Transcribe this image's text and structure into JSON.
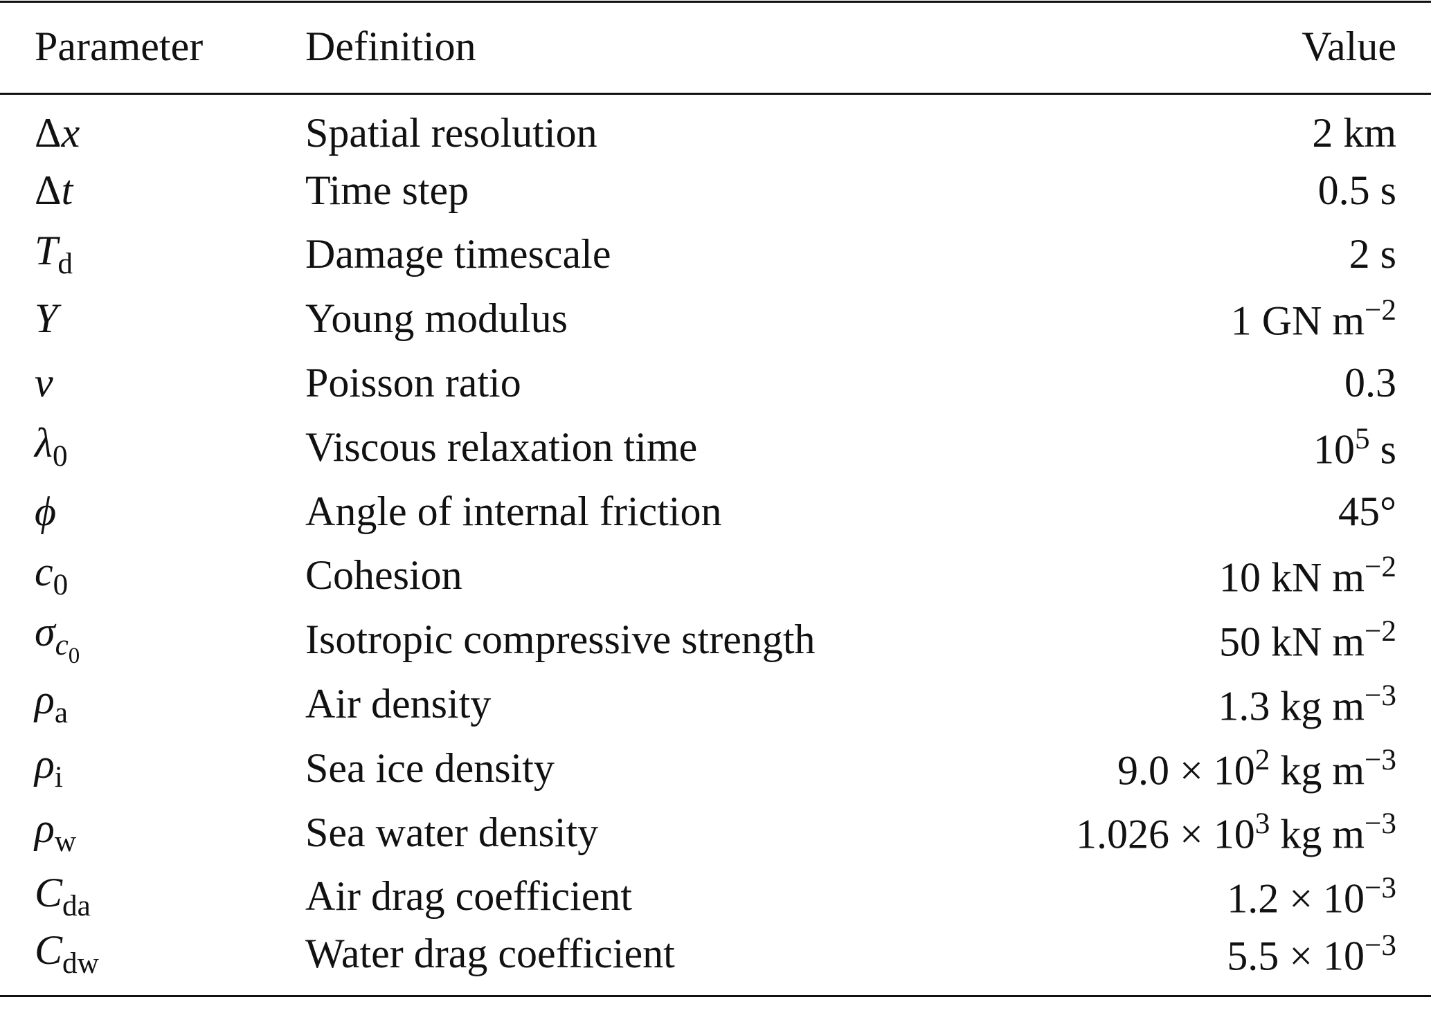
{
  "table": {
    "header": [
      "Parameter",
      "Definition",
      "Value"
    ],
    "rows": [
      [
        [
          {
            "text": "Δ"
          },
          {
            "text": "x",
            "style": "italic"
          }
        ],
        "Spatial resolution",
        [
          {
            "text": "2 km"
          }
        ]
      ],
      [
        [
          {
            "text": "Δ"
          },
          {
            "text": "t",
            "style": "italic"
          }
        ],
        "Time step",
        [
          {
            "text": "0.5 s"
          }
        ]
      ],
      [
        [
          {
            "text": "T",
            "style": "italic"
          },
          {
            "text": "d",
            "style": "sub"
          }
        ],
        "Damage timescale",
        [
          {
            "text": "2 s"
          }
        ]
      ],
      [
        [
          {
            "text": "Y",
            "style": "italic"
          }
        ],
        "Young modulus",
        [
          {
            "text": "1 GN m"
          },
          {
            "text": "−2",
            "style": "sup"
          }
        ]
      ],
      [
        [
          {
            "text": "ν",
            "style": "italic"
          }
        ],
        "Poisson ratio",
        [
          {
            "text": "0.3"
          }
        ]
      ],
      [
        [
          {
            "text": "λ",
            "style": "italic"
          },
          {
            "text": "0",
            "style": "sub"
          }
        ],
        "Viscous relaxation time",
        [
          {
            "text": "10"
          },
          {
            "text": "5",
            "style": "sup"
          },
          {
            "text": " s"
          }
        ]
      ],
      [
        [
          {
            "text": "ϕ",
            "style": "italic"
          }
        ],
        "Angle of internal friction",
        [
          {
            "text": "45°"
          }
        ]
      ],
      [
        [
          {
            "text": "c",
            "style": "italic"
          },
          {
            "text": "0",
            "style": "sub"
          }
        ],
        "Cohesion",
        [
          {
            "text": "10 kN m"
          },
          {
            "text": "−2",
            "style": "sup"
          }
        ]
      ],
      [
        [
          {
            "text": "σ",
            "style": "italic"
          },
          {
            "text": "c",
            "style": "sub-italic"
          },
          {
            "text": "0",
            "style": "sub-sub"
          }
        ],
        "Isotropic compressive strength",
        [
          {
            "text": "50 kN m"
          },
          {
            "text": "−2",
            "style": "sup"
          }
        ]
      ],
      [
        [
          {
            "text": "ρ",
            "style": "italic"
          },
          {
            "text": "a",
            "style": "sub"
          }
        ],
        "Air density",
        [
          {
            "text": "1.3 kg m"
          },
          {
            "text": "−3",
            "style": "sup"
          }
        ]
      ],
      [
        [
          {
            "text": "ρ",
            "style": "italic"
          },
          {
            "text": "i",
            "style": "sub"
          }
        ],
        "Sea ice density",
        [
          {
            "text": "9.0 × 10"
          },
          {
            "text": "2",
            "style": "sup"
          },
          {
            "text": " kg m"
          },
          {
            "text": "−3",
            "style": "sup"
          }
        ]
      ],
      [
        [
          {
            "text": "ρ",
            "style": "italic"
          },
          {
            "text": "w",
            "style": "sub"
          }
        ],
        "Sea water density",
        [
          {
            "text": "1.026 × 10"
          },
          {
            "text": "3",
            "style": "sup"
          },
          {
            "text": " kg m"
          },
          {
            "text": "−3",
            "style": "sup"
          }
        ]
      ],
      [
        [
          {
            "text": "C",
            "style": "italic"
          },
          {
            "text": "da",
            "style": "sub"
          }
        ],
        "Air drag coefficient",
        [
          {
            "text": "1.2 × 10"
          },
          {
            "text": "−3",
            "style": "sup"
          }
        ]
      ],
      [
        [
          {
            "text": "C",
            "style": "italic"
          },
          {
            "text": "dw",
            "style": "sub"
          }
        ],
        "Water drag coefficient",
        [
          {
            "text": "5.5 × 10"
          },
          {
            "text": "−3",
            "style": "sup"
          }
        ]
      ]
    ]
  }
}
